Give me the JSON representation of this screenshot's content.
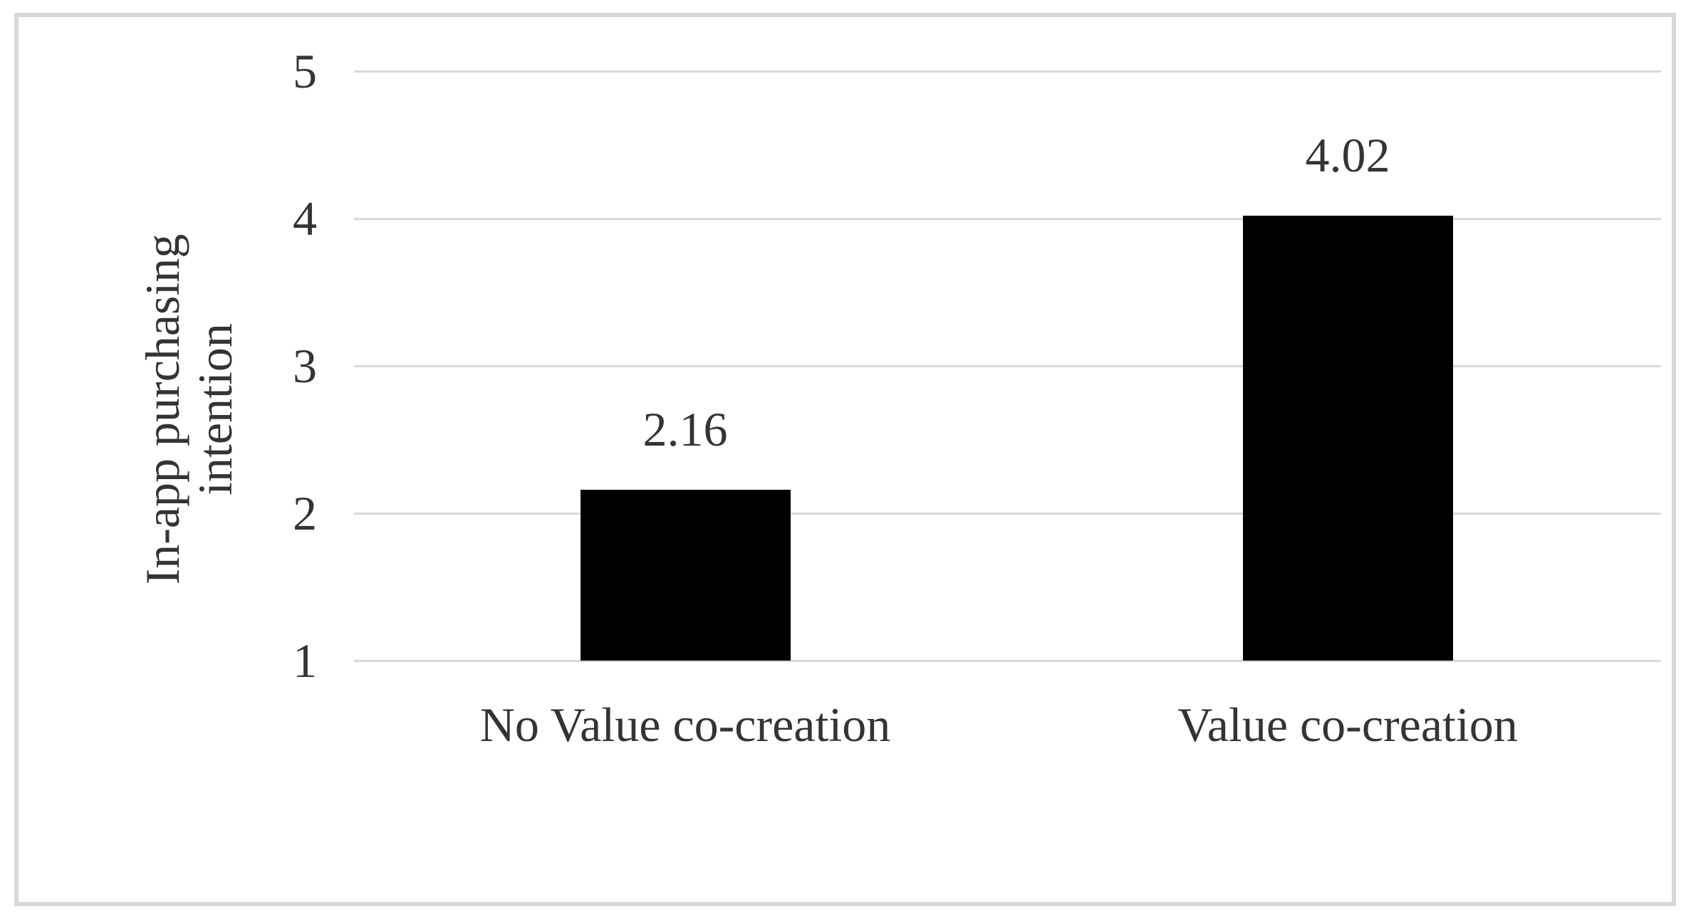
{
  "chart_data": {
    "type": "bar",
    "title": "",
    "categories": [
      "No Value co-creation",
      "Value co-creation"
    ],
    "values": [
      2.16,
      4.02
    ],
    "data_labels": [
      "2.16",
      "4.02"
    ],
    "series": [
      {
        "name": "In-app purchasing intention",
        "values": [
          2.16,
          4.02
        ]
      }
    ],
    "xlabel": "",
    "ylabel": "In-app purchasing intention",
    "ylabel_lines": [
      "In-app purchasing",
      "intention"
    ],
    "ylim": [
      1,
      5
    ],
    "yticks": [
      1,
      2,
      3,
      4,
      5
    ],
    "ytick_labels": [
      "1",
      "2",
      "3",
      "4",
      "5"
    ],
    "grid": true,
    "gridlines": "horizontal",
    "legend": "none",
    "colors": {
      "bar": "#000000",
      "gridline": "#d9d9d9",
      "border": "#d8d8d8",
      "text": "#343434",
      "background": "#ffffff"
    }
  }
}
